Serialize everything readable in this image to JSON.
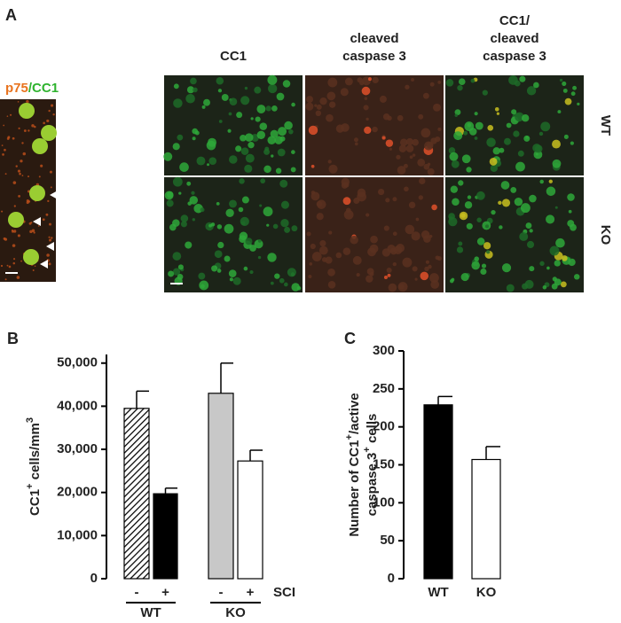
{
  "panel_a": {
    "label": "A",
    "inset_label": [
      "p75",
      "/CC1"
    ],
    "columns": [
      [
        "CC1"
      ],
      [
        "cleaved",
        "caspase 3"
      ],
      [
        "CC1/",
        "cleaved",
        "caspase 3"
      ]
    ],
    "rows": [
      "WT",
      "KO"
    ]
  },
  "chart_data": [
    {
      "type": "bar",
      "panel_label": "B",
      "ylabel": [
        "CC1",
        "+",
        " cells/mm",
        "3"
      ],
      "categories": [
        "-",
        "+",
        "-",
        "+"
      ],
      "groups": [
        "WT",
        "KO"
      ],
      "group_axis_label": "SCI",
      "values": [
        39500,
        19700,
        43000,
        27300
      ],
      "errors": [
        4000,
        1300,
        7000,
        2500
      ],
      "colors": [
        "#ffffff",
        "#000000",
        "#c8c8c8",
        "#ffffff"
      ],
      "hatch": [
        true,
        false,
        false,
        false
      ],
      "ylim": [
        0,
        52000
      ],
      "yticks": [
        0,
        {
          "value": 10000,
          "label": "10,000"
        },
        {
          "value": 20000,
          "label": "20,000"
        },
        {
          "value": 30000,
          "label": "30,000"
        },
        {
          "value": 40000,
          "label": "40,000"
        },
        {
          "value": 50000,
          "label": "50,000"
        }
      ]
    },
    {
      "type": "bar",
      "panel_label": "C",
      "ylabel": [
        [
          "Number of CC1",
          "+",
          "/active"
        ],
        [
          "caspase 3",
          "+",
          " cells"
        ]
      ],
      "categories": [
        "WT",
        "KO"
      ],
      "values": [
        229,
        157
      ],
      "errors": [
        11,
        17
      ],
      "colors": [
        "#000000",
        "#ffffff"
      ],
      "hatch": [
        false,
        false
      ],
      "ylim": [
        0,
        300
      ],
      "yticks": [
        0,
        50,
        100,
        150,
        200,
        250,
        300
      ]
    }
  ]
}
